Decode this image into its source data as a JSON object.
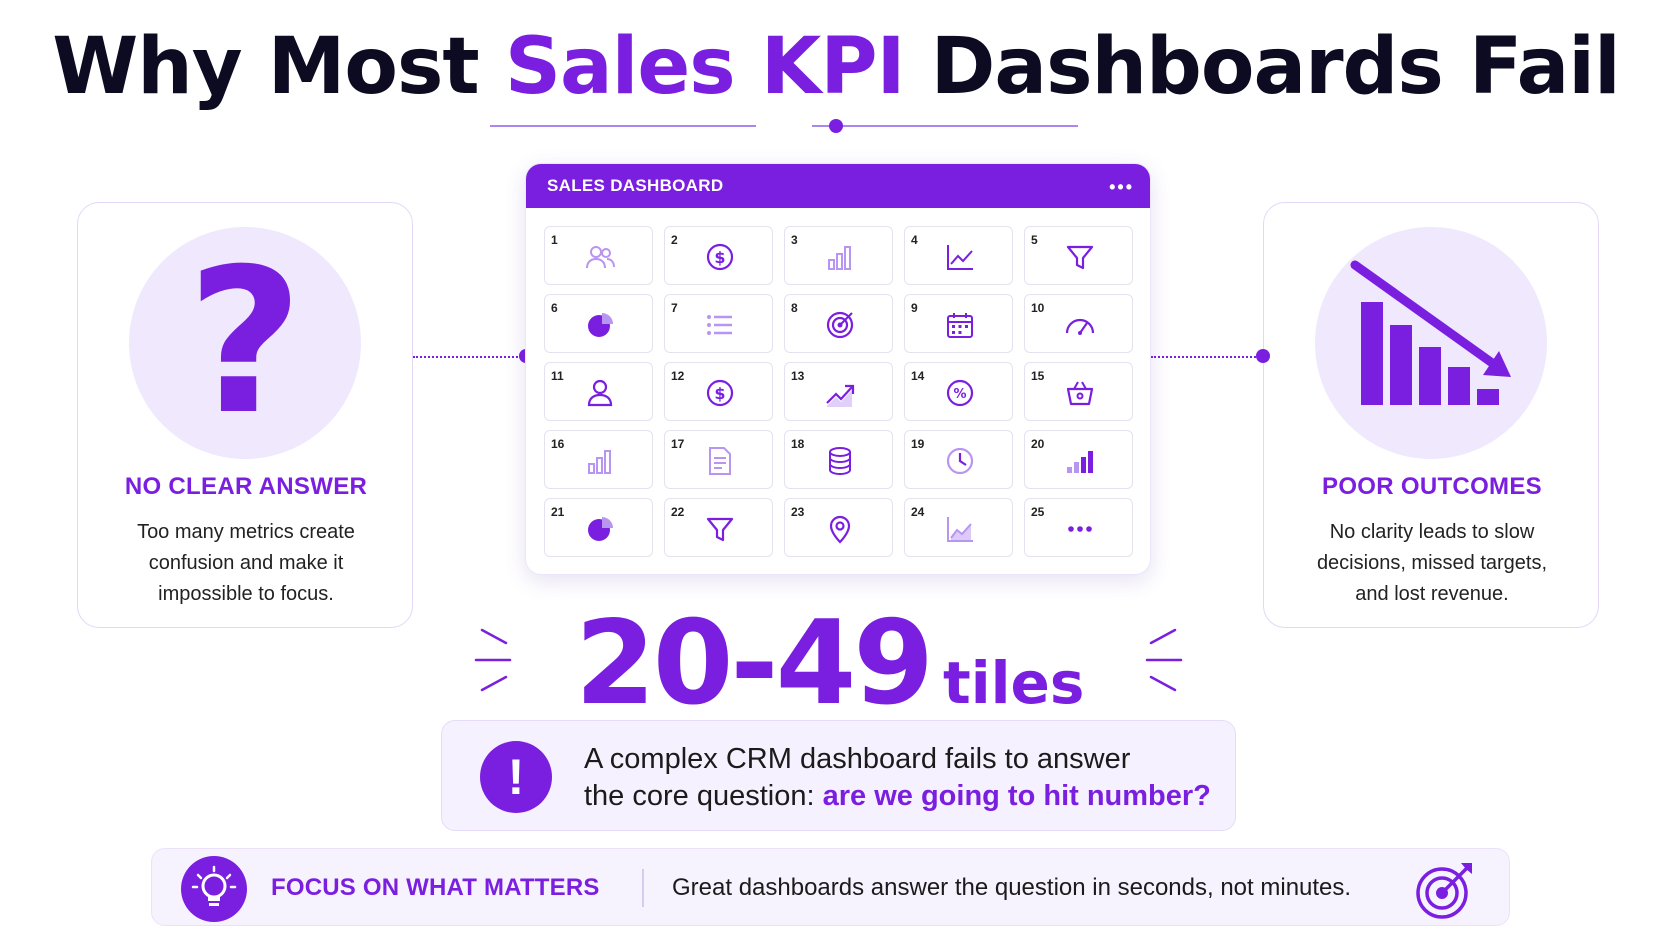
{
  "title": {
    "part1": "Why Most ",
    "accent": "Sales KPI",
    "part2": " Dashboards Fail"
  },
  "colors": {
    "accent": "#7a1fe0",
    "text": "#0d0b22",
    "light": "#f0e8fd"
  },
  "left_card": {
    "icon": "question-mark-icon",
    "glyph": "?",
    "heading": "NO CLEAR ANSWER",
    "line1": "Too many metrics create",
    "line2": "confusion and make it",
    "line3": "impossible to focus."
  },
  "right_card": {
    "icon": "declining-bar-chart-icon",
    "heading": "POOR OUTCOMES",
    "line1": "No clarity leads to slow",
    "line2": "decisions, missed targets,",
    "line3": "and lost revenue."
  },
  "dashboard": {
    "title": "SALES DASHBOARD",
    "menu": "•••",
    "tiles": [
      {
        "num": "1",
        "icon": "users-icon"
      },
      {
        "num": "2",
        "icon": "dollar-icon"
      },
      {
        "num": "3",
        "icon": "bar-chart-icon"
      },
      {
        "num": "4",
        "icon": "line-chart-icon"
      },
      {
        "num": "5",
        "icon": "funnel-icon"
      },
      {
        "num": "6",
        "icon": "pie-chart-icon"
      },
      {
        "num": "7",
        "icon": "list-icon"
      },
      {
        "num": "8",
        "icon": "target-icon"
      },
      {
        "num": "9",
        "icon": "calendar-icon"
      },
      {
        "num": "10",
        "icon": "gauge-icon"
      },
      {
        "num": "11",
        "icon": "user-icon"
      },
      {
        "num": "12",
        "icon": "dollar-icon"
      },
      {
        "num": "13",
        "icon": "trend-up-icon"
      },
      {
        "num": "14",
        "icon": "percent-icon"
      },
      {
        "num": "15",
        "icon": "basket-icon"
      },
      {
        "num": "16",
        "icon": "bar-chart-icon"
      },
      {
        "num": "17",
        "icon": "document-icon"
      },
      {
        "num": "18",
        "icon": "database-icon"
      },
      {
        "num": "19",
        "icon": "clock-icon"
      },
      {
        "num": "20",
        "icon": "signal-bars-icon"
      },
      {
        "num": "21",
        "icon": "pie-chart-icon"
      },
      {
        "num": "22",
        "icon": "funnel-icon"
      },
      {
        "num": "23",
        "icon": "location-pin-icon"
      },
      {
        "num": "24",
        "icon": "area-chart-icon"
      },
      {
        "num": "25",
        "icon": "more-icon"
      }
    ]
  },
  "stat": {
    "number": "20-49",
    "unit": "tiles"
  },
  "callout": {
    "icon": "exclamation-icon",
    "glyph": "!",
    "line1": "A complex CRM dashboard fails to answer",
    "line2_prefix": "the core question: ",
    "line2_highlight": "are we going to hit number?"
  },
  "footer": {
    "icon": "lightbulb-icon",
    "title": "FOCUS ON WHAT MATTERS",
    "text": "Great dashboards answer the question in seconds, not minutes.",
    "end_icon": "target-arrow-icon"
  }
}
